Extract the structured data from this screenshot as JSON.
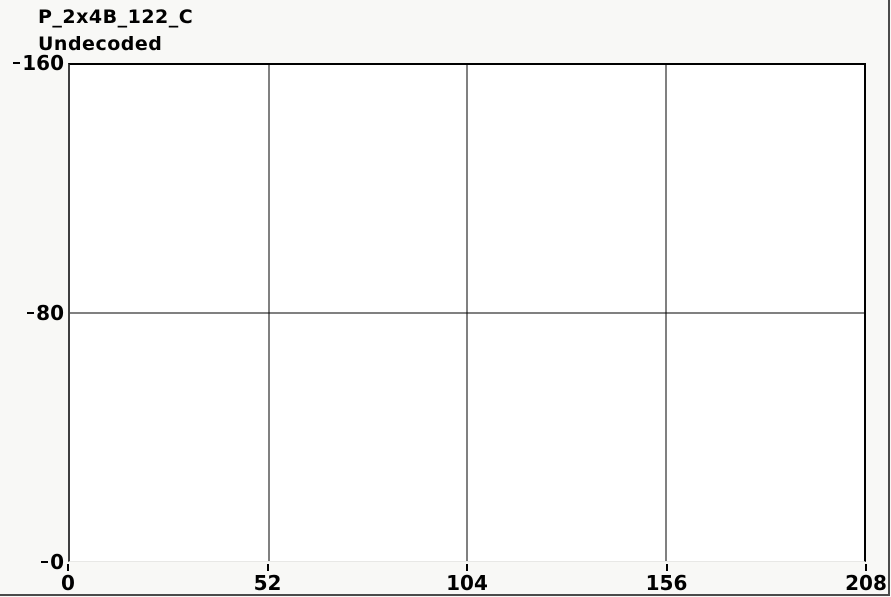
{
  "window": {
    "background": "#f8f8f6",
    "border_color": "#4b4b4b"
  },
  "header": {
    "title": "P_2x4B_122_C",
    "subtitle": "Undecoded"
  },
  "chart_data": {
    "type": "line",
    "title": "P_2x4B_122_C",
    "subtitle": "Undecoded",
    "series": [],
    "x": [],
    "xlim": [
      0,
      208
    ],
    "ylim": [
      0,
      160
    ],
    "xticks": [
      0,
      52,
      104,
      156,
      208
    ],
    "yticks": [
      0,
      80,
      160
    ],
    "grid": true,
    "legend": false,
    "plot_background": "#ffffff",
    "grid_color": "#000000",
    "note": "empty plot, no data points drawn"
  }
}
